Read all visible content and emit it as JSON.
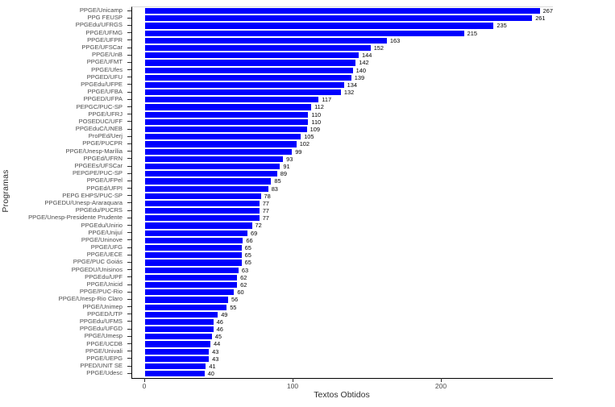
{
  "chart_data": {
    "type": "bar",
    "orientation": "horizontal",
    "title": "",
    "xlabel": "Textos Obtidos",
    "ylabel": "Programas",
    "xlim": [
      0,
      280
    ],
    "xticks": [
      0,
      100,
      200
    ],
    "grid": "off",
    "legend": "none",
    "bar_color": "#0000FE",
    "categories": [
      "PPGE/Unicamp",
      "PPG FEUSP",
      "PPGEdu/UFRGS",
      "PPGE/UFMG",
      "PPGE/UFPR",
      "PPGE/UFSCar",
      "PPGE/UnB",
      "PPGE/UFMT",
      "PPGE/Ufes",
      "PPGED/UFU",
      "PPGEdu/UFPE",
      "PPGE/UFBA",
      "PPGED/UFPA",
      "PEPGC/PUC-SP",
      "PPGE/UFRJ",
      "POSEDUC/UFF",
      "PPGEduC/UNEB",
      "ProPEd/Uerj",
      "PPGE/PUCPR",
      "PPGE/Unesp-Marília",
      "PPGEd/UFRN",
      "PPGEEs/UFSCar",
      "PEPGPE/PUC-SP",
      "PPGE/UFPel",
      "PPGEd/UFPI",
      "PEPG EHPS/PUC-SP",
      "PPGEDU/Unesp-Araraquara",
      "PPGEdu/PUCRS",
      "PPGE/Unesp-Presidente Prudente",
      "PPGEdu/Unirio",
      "PPGE/Unijuí",
      "PPGE/Uninove",
      "PPGE/UFG",
      "PPGE/UECE",
      "PPGE/PUC Goiás",
      "PPGEDU/Unisinos",
      "PPGEdu/UPF",
      "PPGE/Unicid",
      "PPGE/PUC-Rio",
      "PPGE/Unesp-Rio Claro",
      "PPGE/Unimep",
      "PPGED/UTP",
      "PPGEdu/UFMS",
      "PPGEdu/UFGD",
      "PPGE/Umesp",
      "PPGE/UCDB",
      "PPGE/Univali",
      "PPGE/UEPG",
      "PPED/UNIT SE",
      "PPGE/Udesc"
    ],
    "values": [
      267,
      261,
      235,
      215,
      163,
      152,
      144,
      142,
      140,
      139,
      134,
      132,
      117,
      112,
      110,
      110,
      109,
      105,
      102,
      99,
      93,
      91,
      89,
      85,
      83,
      78,
      77,
      77,
      77,
      72,
      69,
      66,
      65,
      65,
      65,
      63,
      62,
      62,
      60,
      56,
      55,
      49,
      46,
      46,
      45,
      44,
      43,
      43,
      41,
      40
    ]
  }
}
